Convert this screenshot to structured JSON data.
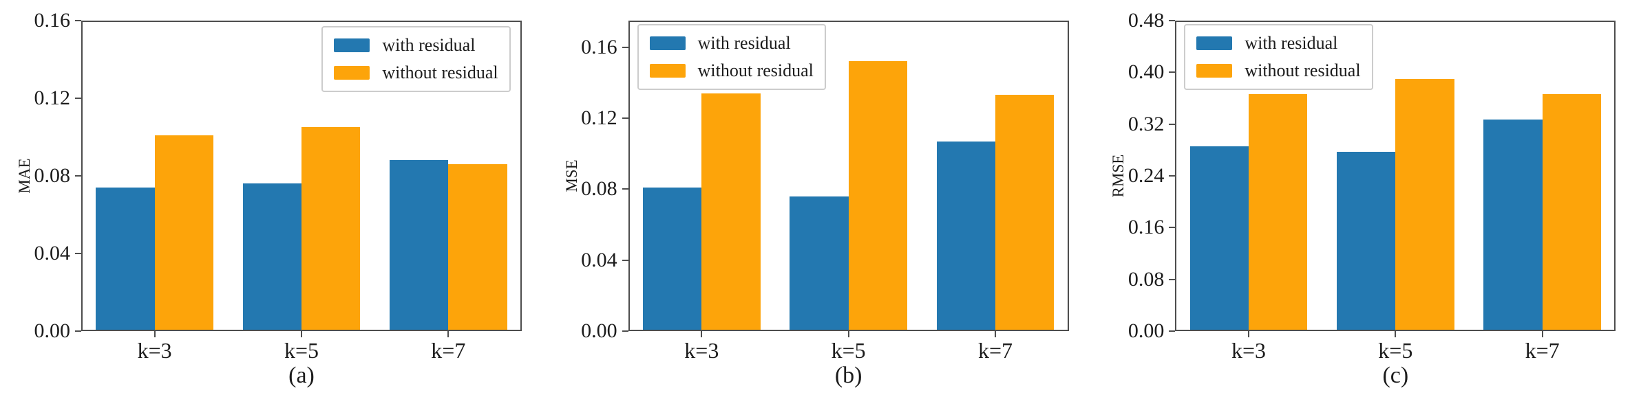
{
  "figure": {
    "background": "#ffffff",
    "palette": {
      "with_residual": "#2378B0",
      "without_residual": "#FDA40A",
      "axis_color": "#4d4d4d",
      "legend_border": "#cccccc",
      "text_color": "#1c1c1c"
    }
  },
  "chart_data": [
    {
      "type": "bar",
      "caption": "(a)",
      "ylabel": "MAE",
      "xlabel": "",
      "categories": [
        "k=3",
        "k=5",
        "k=7"
      ],
      "series": [
        {
          "name": "with residual",
          "color": "#2378B0",
          "values": [
            0.074,
            0.076,
            0.088
          ]
        },
        {
          "name": "without residual",
          "color": "#FDA40A",
          "values": [
            0.101,
            0.105,
            0.086
          ]
        }
      ],
      "ylim": [
        0,
        0.16
      ],
      "yticks": [
        0,
        0.04,
        0.08,
        0.12,
        0.16
      ],
      "ytick_labels": [
        "0.00",
        "0.04",
        "0.08",
        "0.12",
        "0.16"
      ],
      "legend": {
        "labels": [
          "with residual",
          "without residual"
        ],
        "position": "upper right"
      },
      "grid": false
    },
    {
      "type": "bar",
      "caption": "(b)",
      "ylabel": "MSE",
      "xlabel": "",
      "categories": [
        "k=3",
        "k=5",
        "k=7"
      ],
      "series": [
        {
          "name": "with residual",
          "color": "#2378B0",
          "values": [
            0.081,
            0.076,
            0.107
          ]
        },
        {
          "name": "without residual",
          "color": "#FDA40A",
          "values": [
            0.134,
            0.152,
            0.133
          ]
        }
      ],
      "ylim": [
        0,
        0.175
      ],
      "yticks": [
        0,
        0.04,
        0.08,
        0.12,
        0.16
      ],
      "ytick_labels": [
        "0.00",
        "0.04",
        "0.08",
        "0.12",
        "0.16"
      ],
      "legend": {
        "labels": [
          "with residual",
          "without residual"
        ],
        "position": "upper left"
      },
      "grid": false
    },
    {
      "type": "bar",
      "caption": "(c)",
      "ylabel": "RMSE",
      "xlabel": "",
      "categories": [
        "k=3",
        "k=5",
        "k=7"
      ],
      "series": [
        {
          "name": "with residual",
          "color": "#2378B0",
          "values": [
            0.286,
            0.277,
            0.327
          ]
        },
        {
          "name": "without residual",
          "color": "#FDA40A",
          "values": [
            0.366,
            0.39,
            0.366
          ]
        }
      ],
      "ylim": [
        0,
        0.48
      ],
      "yticks": [
        0,
        0.08,
        0.16,
        0.24,
        0.32,
        0.4,
        0.48
      ],
      "ytick_labels": [
        "0.00",
        "0.08",
        "0.16",
        "0.24",
        "0.32",
        "0.40",
        "0.48"
      ],
      "legend": {
        "labels": [
          "with residual",
          "without residual"
        ],
        "position": "upper left"
      },
      "grid": false
    }
  ]
}
